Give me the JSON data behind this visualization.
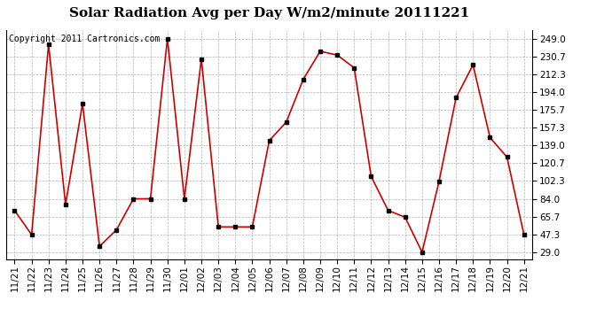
{
  "title": "Solar Radiation Avg per Day W/m2/minute 20111221",
  "copyright": "Copyright 2011 Cartronics.com",
  "labels": [
    "11/21",
    "11/22",
    "11/23",
    "11/24",
    "11/25",
    "11/26",
    "11/27",
    "11/28",
    "11/29",
    "11/30",
    "12/01",
    "12/02",
    "12/03",
    "12/04",
    "12/05",
    "12/06",
    "12/07",
    "12/08",
    "12/09",
    "12/10",
    "12/11",
    "12/12",
    "12/13",
    "12/14",
    "12/15",
    "12/16",
    "12/17",
    "12/18",
    "12/19",
    "12/20",
    "12/21"
  ],
  "values": [
    72,
    47,
    243,
    78,
    182,
    35,
    52,
    84,
    84,
    249,
    84,
    228,
    55,
    55,
    55,
    144,
    163,
    207,
    236,
    232,
    219,
    107,
    72,
    65,
    29,
    102,
    188,
    222,
    147,
    127,
    47
  ],
  "line_color": "#cc0000",
  "marker_color": "#000000",
  "bg_color": "#ffffff",
  "plot_bg_color": "#ffffff",
  "grid_color": "#aaaaaa",
  "yticks": [
    29.0,
    47.3,
    65.7,
    84.0,
    102.3,
    120.7,
    139.0,
    157.3,
    175.7,
    194.0,
    212.3,
    230.7,
    249.0
  ],
  "ylim": [
    22,
    258
  ],
  "title_fontsize": 11,
  "tick_fontsize": 7.5,
  "copyright_fontsize": 7
}
